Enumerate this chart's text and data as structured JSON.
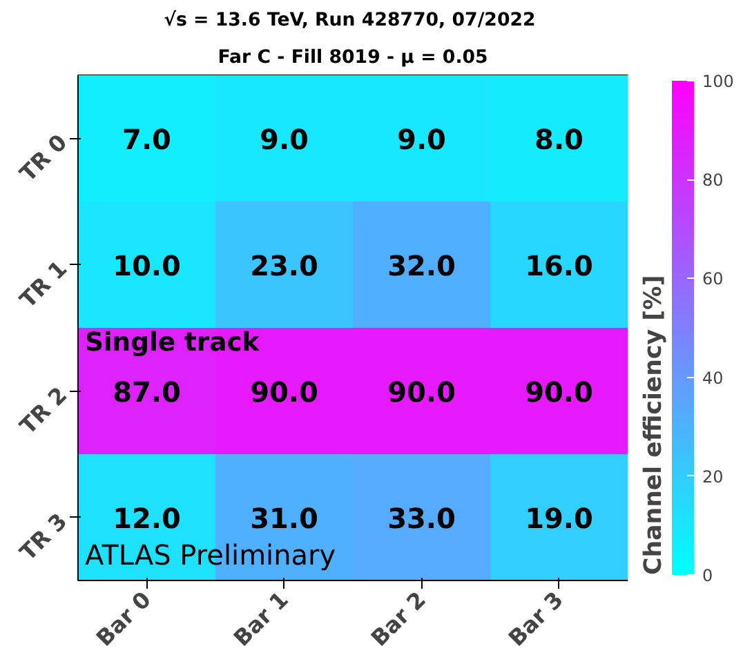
{
  "chart_data": {
    "type": "heatmap",
    "title": "√s = 13.6 TeV, Run 428770,  07/2022",
    "subtitle": "Far C - Fill 8019 - μ = 0.05",
    "categories": [
      "Bar 0",
      "Bar 1",
      "Bar 2",
      "Bar 3"
    ],
    "y_categories": [
      "TR 0",
      "TR 1",
      "TR 2",
      "TR 3"
    ],
    "cells": [
      [
        7,
        9,
        9,
        8
      ],
      [
        10,
        23,
        32,
        16
      ],
      [
        87,
        90,
        90,
        90
      ],
      [
        12,
        31,
        33,
        19
      ]
    ],
    "cell_labels": [
      [
        "7.0",
        "9.0",
        "9.0",
        "8.0"
      ],
      [
        "10.0",
        "23.0",
        "32.0",
        "16.0"
      ],
      [
        "87.0",
        "90.0",
        "90.0",
        "90.0"
      ],
      [
        "12.0",
        "31.0",
        "33.0",
        "19.0"
      ]
    ],
    "clim": [
      0,
      100
    ],
    "cticks": [
      0,
      20,
      40,
      60,
      80,
      100
    ],
    "clabel": "Channel efficiency [%]",
    "annotations": [
      "Single track",
      "ATLAS Preliminary"
    ]
  }
}
